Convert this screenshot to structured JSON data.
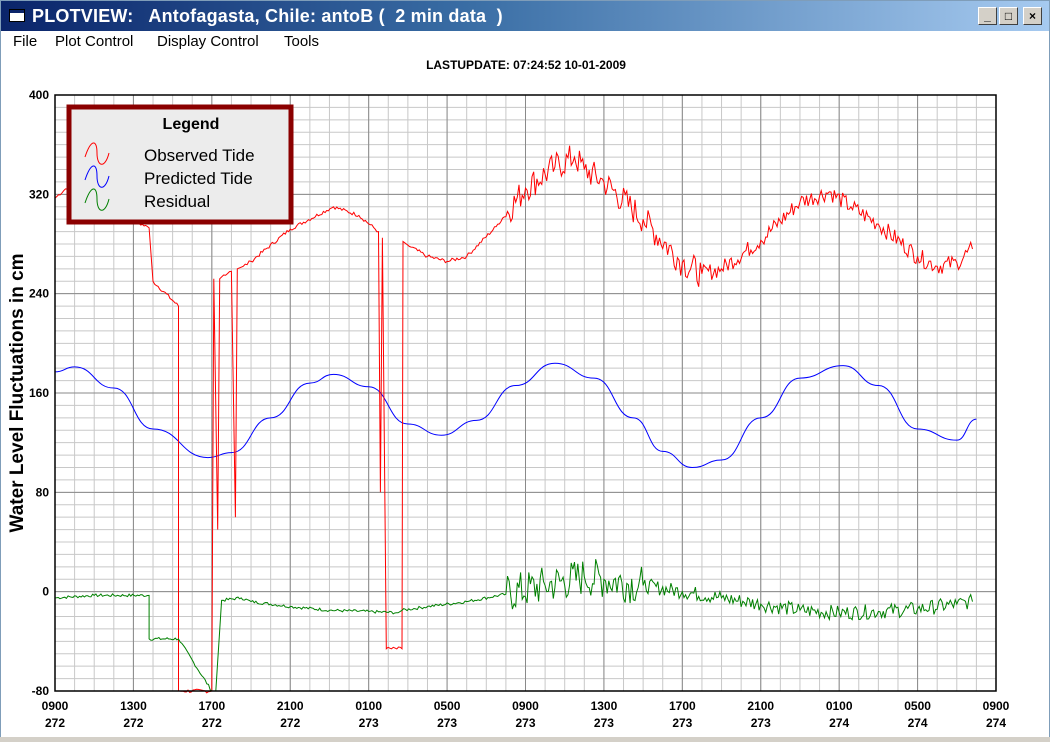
{
  "window": {
    "title": "PLOTVIEW:   Antofagasta, Chile: antoB (  2 min data  )",
    "controls": {
      "minimize": "_",
      "maximize": "□",
      "close": "×"
    }
  },
  "menu": {
    "items": [
      "File",
      "Plot Control",
      "Display Control",
      "Tools"
    ]
  },
  "colors": {
    "observed": "#ff0000",
    "predicted": "#0000ff",
    "residual": "#008000",
    "legend_border": "#8b0000",
    "grid": "#aaaaaa"
  },
  "chart_data": {
    "type": "line",
    "title": "LASTUPDATE: 07:24:52  10-01-2009",
    "ylabel": "Water Level Fluctuations in cm",
    "xlabel": "",
    "ylim": [
      -80,
      400
    ],
    "yticks": [
      -80,
      0,
      80,
      160,
      240,
      320,
      400
    ],
    "xlim": [
      0,
      48
    ],
    "xticks": [
      {
        "x": 0,
        "time": "0900",
        "day": "272"
      },
      {
        "x": 4,
        "time": "1300",
        "day": "272"
      },
      {
        "x": 8,
        "time": "1700",
        "day": "272"
      },
      {
        "x": 12,
        "time": "2100",
        "day": "272"
      },
      {
        "x": 16,
        "time": "0100",
        "day": "273"
      },
      {
        "x": 20,
        "time": "0500",
        "day": "273"
      },
      {
        "x": 24,
        "time": "0900",
        "day": "273"
      },
      {
        "x": 28,
        "time": "1300",
        "day": "273"
      },
      {
        "x": 32,
        "time": "1700",
        "day": "273"
      },
      {
        "x": 36,
        "time": "2100",
        "day": "273"
      },
      {
        "x": 40,
        "time": "0100",
        "day": "274"
      },
      {
        "x": 44,
        "time": "0500",
        "day": "274"
      },
      {
        "x": 48,
        "time": "0900",
        "day": "274"
      }
    ],
    "grid": true,
    "legend": {
      "title": "Legend",
      "position": "top-left",
      "entries": [
        "Observed Tide",
        "Predicted Tide",
        "Residual"
      ]
    },
    "series": [
      {
        "name": "Predicted Tide",
        "x": [
          0,
          1,
          3,
          5,
          7.8,
          9,
          11,
          13,
          14.2,
          16,
          18,
          19.7,
          21.5,
          23.5,
          25.5,
          27.5,
          29.5,
          31,
          32.5,
          34,
          36,
          38,
          40.2,
          42,
          44,
          46,
          47
        ],
        "y": [
          177,
          181,
          164,
          131,
          108,
          112,
          140,
          168,
          175,
          165,
          135,
          126,
          138,
          166,
          184,
          172,
          140,
          113,
          100,
          106,
          140,
          172,
          182,
          166,
          131,
          122,
          139
        ]
      },
      {
        "name": "Observed Tide",
        "x": [
          0,
          0.8,
          1.5,
          3,
          4.8,
          5,
          6.3,
          6.3,
          6.35,
          8,
          8.1,
          8.3,
          8.4,
          8.6,
          9,
          9.2,
          9.3,
          9.6,
          10,
          12,
          14.2,
          15.5,
          16.5,
          16.6,
          16.7,
          16.9,
          17.7,
          17.75,
          18,
          19,
          20,
          21,
          22.5,
          24,
          25.5,
          26.5,
          27,
          28,
          30,
          32,
          33,
          34,
          36,
          38,
          39.5,
          40.6,
          42,
          44,
          45,
          46,
          46.8
        ],
        "y": [
          317,
          328,
          320,
          306,
          293,
          250,
          230,
          -80,
          -80,
          -80,
          252,
          50,
          252,
          255,
          258,
          60,
          260,
          262,
          266,
          292,
          310,
          303,
          290,
          80,
          285,
          -46,
          -46,
          282,
          279,
          270,
          266,
          270,
          294,
          325,
          342,
          350,
          340,
          330,
          300,
          265,
          256,
          260,
          283,
          314,
          322,
          310,
          296,
          270,
          262,
          265,
          276
        ]
      },
      {
        "name": "Residual",
        "x": [
          0,
          2,
          4.8,
          4.8,
          6.3,
          8,
          8.2,
          8.5,
          9.5,
          10,
          12,
          14,
          16,
          17.5,
          17.7,
          19,
          21,
          23,
          25,
          27,
          28,
          30,
          32,
          34,
          36,
          38,
          40,
          42,
          44,
          46,
          46.8
        ],
        "y": [
          -5,
          -3,
          -3,
          -38,
          -38,
          -80,
          -80,
          -7,
          -5,
          -8,
          -12,
          -15,
          -16,
          -17,
          -15,
          -12,
          -8,
          -2,
          5,
          12,
          10,
          5,
          0,
          -5,
          -10,
          -15,
          -17,
          -16,
          -14,
          -10,
          -8
        ]
      }
    ]
  }
}
